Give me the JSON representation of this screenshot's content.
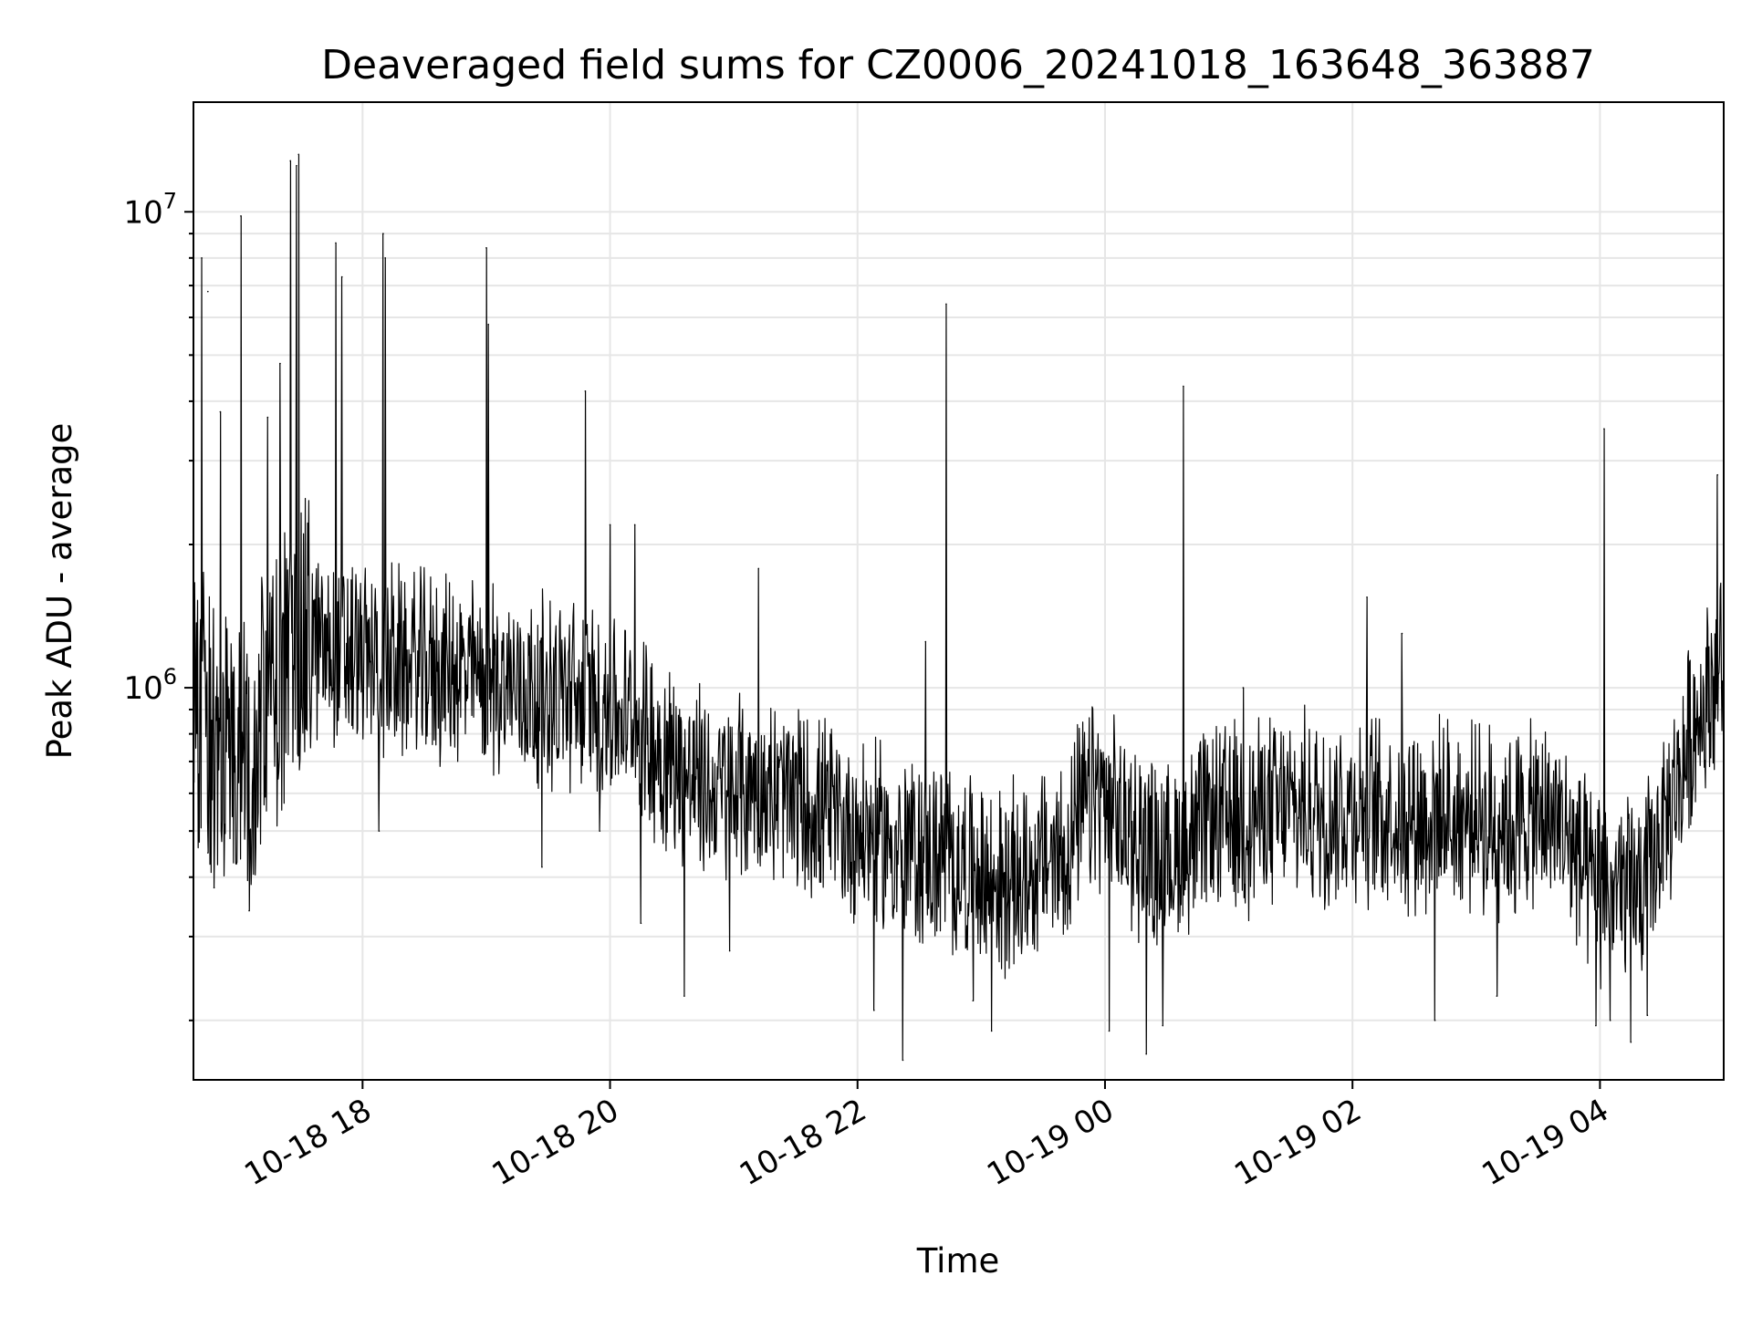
{
  "chart_data": {
    "type": "line",
    "title": "Deaveraged field sums for CZ0006_20241018_163648_363887",
    "xlabel": "Time",
    "ylabel": "Peak ADU - average",
    "y_scale": "log",
    "ylim": [
      150000,
      17000000
    ],
    "y_tick_labels": [
      {
        "base": "10",
        "exp": "6",
        "value": 1000000
      },
      {
        "base": "10",
        "exp": "7",
        "value": 10000000
      }
    ],
    "xlim": [
      "2024-10-18 16:38",
      "2024-10-19 05:00"
    ],
    "x_tick_labels": [
      {
        "label": "10-18 18",
        "time": "2024-10-18 18:00"
      },
      {
        "label": "10-18 20",
        "time": "2024-10-18 20:00"
      },
      {
        "label": "10-18 22",
        "time": "2024-10-18 22:00"
      },
      {
        "label": "10-19 00",
        "time": "2024-10-19 00:00"
      },
      {
        "label": "10-19 02",
        "time": "2024-10-19 02:00"
      },
      {
        "label": "10-19 04",
        "time": "2024-10-19 04:00"
      }
    ],
    "grid": true,
    "series_color": "#000000",
    "baseline": [
      [
        "2024-10-18 16:38",
        900000
      ],
      [
        "2024-10-18 16:50",
        850000
      ],
      [
        "2024-10-18 17:05",
        700000
      ],
      [
        "2024-10-18 17:15",
        950000
      ],
      [
        "2024-10-18 17:30",
        1250000
      ],
      [
        "2024-10-18 18:00",
        1150000
      ],
      [
        "2024-10-18 18:30",
        1100000
      ],
      [
        "2024-10-18 19:00",
        1050000
      ],
      [
        "2024-10-18 19:30",
        980000
      ],
      [
        "2024-10-18 19:50",
        950000
      ],
      [
        "2024-10-18 20:10",
        850000
      ],
      [
        "2024-10-18 20:30",
        700000
      ],
      [
        "2024-10-18 20:50",
        600000
      ],
      [
        "2024-10-18 21:10",
        620000
      ],
      [
        "2024-10-18 21:30",
        580000
      ],
      [
        "2024-10-18 21:50",
        520000
      ],
      [
        "2024-10-18 22:15",
        470000
      ],
      [
        "2024-10-18 22:45",
        430000
      ],
      [
        "2024-10-18 23:10",
        380000
      ],
      [
        "2024-10-18 23:40",
        450000
      ],
      [
        "2024-10-18 23:55",
        600000
      ],
      [
        "2024-10-19 00:10",
        500000
      ],
      [
        "2024-10-19 00:30",
        430000
      ],
      [
        "2024-10-19 00:50",
        520000
      ],
      [
        "2024-10-19 01:20",
        550000
      ],
      [
        "2024-10-19 02:00",
        560000
      ],
      [
        "2024-10-19 02:40",
        540000
      ],
      [
        "2024-10-19 03:10",
        520000
      ],
      [
        "2024-10-19 03:40",
        530000
      ],
      [
        "2024-10-19 03:55",
        380000
      ],
      [
        "2024-10-19 04:20",
        370000
      ],
      [
        "2024-10-19 04:35",
        550000
      ],
      [
        "2024-10-19 04:50",
        950000
      ],
      [
        "2024-10-19 05:00",
        1100000
      ]
    ],
    "spikes": [
      [
        "2024-10-18 16:42",
        8000000
      ],
      [
        "2024-10-18 16:45",
        6800000
      ],
      [
        "2024-10-18 16:51",
        3800000
      ],
      [
        "2024-10-18 17:01",
        9800000
      ],
      [
        "2024-10-18 17:14",
        3700000
      ],
      [
        "2024-10-18 17:20",
        4800000
      ],
      [
        "2024-10-18 17:25",
        12800000
      ],
      [
        "2024-10-18 17:28",
        12500000
      ],
      [
        "2024-10-18 17:29",
        13200000
      ],
      [
        "2024-10-18 17:47",
        8600000
      ],
      [
        "2024-10-18 17:50",
        7300000
      ],
      [
        "2024-10-18 18:10",
        9000000
      ],
      [
        "2024-10-18 18:11",
        8000000
      ],
      [
        "2024-10-18 19:00",
        8400000
      ],
      [
        "2024-10-18 19:01",
        5800000
      ],
      [
        "2024-10-18 19:48",
        4200000
      ],
      [
        "2024-10-18 20:00",
        2200000
      ],
      [
        "2024-10-18 20:12",
        2200000
      ],
      [
        "2024-10-18 21:12",
        1780000
      ],
      [
        "2024-10-18 22:33",
        1250000
      ],
      [
        "2024-10-18 22:43",
        6400000
      ],
      [
        "2024-10-19 00:38",
        4300000
      ],
      [
        "2024-10-19 01:07",
        1000000
      ],
      [
        "2024-10-19 02:07",
        1550000
      ],
      [
        "2024-10-19 02:24",
        1300000
      ],
      [
        "2024-10-19 04:02",
        3500000
      ],
      [
        "2024-10-19 04:57",
        2800000
      ]
    ],
    "dips": [
      [
        "2024-10-18 16:45",
        450000
      ],
      [
        "2024-10-18 16:48",
        380000
      ],
      [
        "2024-10-18 17:05",
        340000
      ],
      [
        "2024-10-18 18:08",
        500000
      ],
      [
        "2024-10-18 19:27",
        420000
      ],
      [
        "2024-10-18 19:55",
        500000
      ],
      [
        "2024-10-18 20:15",
        320000
      ],
      [
        "2024-10-18 20:36",
        225000
      ],
      [
        "2024-10-18 20:58",
        280000
      ],
      [
        "2024-10-18 22:08",
        210000
      ],
      [
        "2024-10-18 22:22",
        165000
      ],
      [
        "2024-10-18 22:56",
        220000
      ],
      [
        "2024-10-18 23:05",
        190000
      ],
      [
        "2024-10-19 00:02",
        190000
      ],
      [
        "2024-10-19 00:20",
        170000
      ],
      [
        "2024-10-19 00:28",
        195000
      ],
      [
        "2024-10-19 02:40",
        200000
      ],
      [
        "2024-10-19 03:10",
        225000
      ],
      [
        "2024-10-19 03:58",
        195000
      ],
      [
        "2024-10-19 04:05",
        200000
      ],
      [
        "2024-10-19 04:15",
        180000
      ],
      [
        "2024-10-19 04:23",
        205000
      ]
    ]
  }
}
